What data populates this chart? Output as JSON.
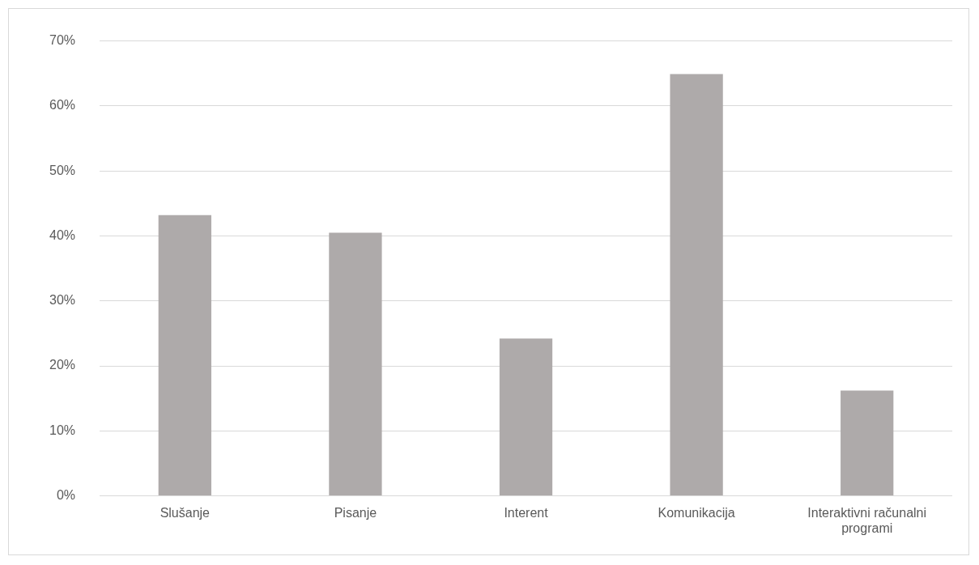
{
  "chart_data": {
    "type": "bar",
    "categories": [
      "Slušanje",
      "Pisanje",
      "Interent",
      "Komunikacija",
      "Interaktivni računalni programi"
    ],
    "values": [
      43.2,
      40.5,
      24.2,
      64.9,
      16.2
    ],
    "color": "#aeaaaa",
    "ylim": [
      0,
      70
    ],
    "yticks": [
      {
        "value": 0,
        "label": "0%"
      },
      {
        "value": 10,
        "label": "10%"
      },
      {
        "value": 20,
        "label": "20%"
      },
      {
        "value": 30,
        "label": "30%"
      },
      {
        "value": 40,
        "label": "40%"
      },
      {
        "value": 50,
        "label": "50%"
      },
      {
        "value": 60,
        "label": "60%"
      },
      {
        "value": 70,
        "label": "70%"
      }
    ],
    "grid": "y"
  }
}
